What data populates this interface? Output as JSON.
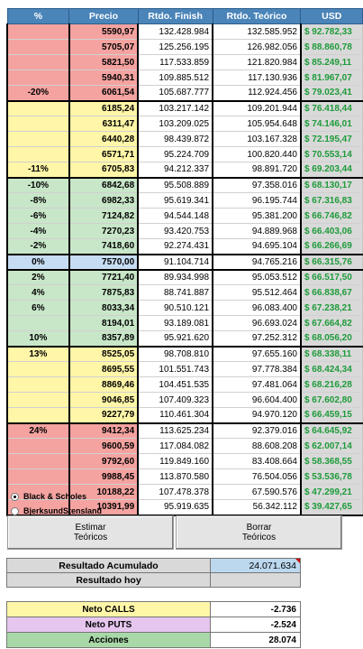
{
  "headers": {
    "pct": "%",
    "precio": "Precio",
    "finish": "Rtdo. Finish",
    "teorico": "Rtdo. Teórico",
    "usd": "USD"
  },
  "rows": [
    {
      "pct": "",
      "precio": "5590,97",
      "finish": "132.428.984",
      "teorico": "132.585.952",
      "usd": "$ 92.782,33",
      "band": "red"
    },
    {
      "pct": "",
      "precio": "5705,07",
      "finish": "125.256.195",
      "teorico": "126.982.056",
      "usd": "$ 88.860,78",
      "band": "red"
    },
    {
      "pct": "",
      "precio": "5821,50",
      "finish": "117.533.859",
      "teorico": "121.820.984",
      "usd": "$ 85.249,11",
      "band": "red"
    },
    {
      "pct": "",
      "precio": "5940,31",
      "finish": "109.885.512",
      "teorico": "117.130.936",
      "usd": "$ 81.967,07",
      "band": "red"
    },
    {
      "pct": "-20%",
      "precio": "6061,54",
      "finish": "105.687.777",
      "teorico": "112.924.456",
      "usd": "$ 79.023,41",
      "band": "red"
    },
    {
      "pct": "",
      "precio": "6185,24",
      "finish": "103.217.142",
      "teorico": "109.201.944",
      "usd": "$ 76.418,44",
      "band": "yel"
    },
    {
      "pct": "",
      "precio": "6311,47",
      "finish": "103.209.025",
      "teorico": "105.954.648",
      "usd": "$ 74.146,01",
      "band": "yel"
    },
    {
      "pct": "",
      "precio": "6440,28",
      "finish": "98.439.872",
      "teorico": "103.167.328",
      "usd": "$ 72.195,47",
      "band": "yel"
    },
    {
      "pct": "",
      "precio": "6571,71",
      "finish": "95.224.709",
      "teorico": "100.820.440",
      "usd": "$ 70.553,14",
      "band": "yel"
    },
    {
      "pct": "-11%",
      "precio": "6705,83",
      "finish": "94.212.337",
      "teorico": "98.891.720",
      "usd": "$ 69.203,44",
      "band": "yel"
    },
    {
      "pct": "-10%",
      "precio": "6842,68",
      "finish": "95.508.889",
      "teorico": "97.358.016",
      "usd": "$ 68.130,17",
      "band": "grn"
    },
    {
      "pct": "-8%",
      "precio": "6982,33",
      "finish": "95.619.341",
      "teorico": "96.195.744",
      "usd": "$ 67.316,83",
      "band": "grn"
    },
    {
      "pct": "-6%",
      "precio": "7124,82",
      "finish": "94.544.148",
      "teorico": "95.381.200",
      "usd": "$ 66.746,82",
      "band": "grn"
    },
    {
      "pct": "-4%",
      "precio": "7270,23",
      "finish": "93.420.753",
      "teorico": "94.889.968",
      "usd": "$ 66.403,06",
      "band": "grn"
    },
    {
      "pct": "-2%",
      "precio": "7418,60",
      "finish": "92.274.431",
      "teorico": "94.695.104",
      "usd": "$ 66.266,69",
      "band": "grn"
    },
    {
      "pct": "0%",
      "precio": "7570,00",
      "finish": "91.104.714",
      "teorico": "94.765.216",
      "usd": "$ 66.315,76",
      "band": "blu"
    },
    {
      "pct": "2%",
      "precio": "7721,40",
      "finish": "89.934.998",
      "teorico": "95.053.512",
      "usd": "$ 66.517,50",
      "band": "grn"
    },
    {
      "pct": "4%",
      "precio": "7875,83",
      "finish": "88.741.887",
      "teorico": "95.512.464",
      "usd": "$ 66.838,67",
      "band": "grn"
    },
    {
      "pct": "6%",
      "precio": "8033,34",
      "finish": "90.510.121",
      "teorico": "96.083.400",
      "usd": "$ 67.238,21",
      "band": "grn"
    },
    {
      "pct": "",
      "precio": "8194,01",
      "finish": "93.189.081",
      "teorico": "96.693.024",
      "usd": "$ 67.664,82",
      "band": "grn"
    },
    {
      "pct": "10%",
      "precio": "8357,89",
      "finish": "95.921.620",
      "teorico": "97.252.312",
      "usd": "$ 68.056,20",
      "band": "grn"
    },
    {
      "pct": "13%",
      "precio": "8525,05",
      "finish": "98.708.810",
      "teorico": "97.655.160",
      "usd": "$ 68.338,11",
      "band": "yel"
    },
    {
      "pct": "",
      "precio": "8695,55",
      "finish": "101.551.743",
      "teorico": "97.778.384",
      "usd": "$ 68.424,34",
      "band": "yel"
    },
    {
      "pct": "",
      "precio": "8869,46",
      "finish": "104.451.535",
      "teorico": "97.481.064",
      "usd": "$ 68.216,28",
      "band": "yel"
    },
    {
      "pct": "",
      "precio": "9046,85",
      "finish": "107.409.323",
      "teorico": "96.604.400",
      "usd": "$ 67.602,80",
      "band": "yel"
    },
    {
      "pct": "",
      "precio": "9227,79",
      "finish": "110.461.304",
      "teorico": "94.970.120",
      "usd": "$ 66.459,15",
      "band": "yel"
    },
    {
      "pct": "24%",
      "precio": "9412,34",
      "finish": "113.625.234",
      "teorico": "92.379.016",
      "usd": "$ 64.645,92",
      "band": "red"
    },
    {
      "pct": "",
      "precio": "9600,59",
      "finish": "117.084.082",
      "teorico": "88.608.208",
      "usd": "$ 62.007,14",
      "band": "red"
    },
    {
      "pct": "",
      "precio": "9792,60",
      "finish": "119.849.160",
      "teorico": "83.408.664",
      "usd": "$ 58.368,55",
      "band": "red"
    },
    {
      "pct": "",
      "precio": "9988,45",
      "finish": "113.870.580",
      "teorico": "76.504.056",
      "usd": "$ 53.536,78",
      "band": "red"
    },
    {
      "pct": "",
      "precio": "10188,22",
      "finish": "107.478.378",
      "teorico": "67.590.576",
      "usd": "$ 47.299,21",
      "band": "red"
    },
    {
      "pct": "",
      "precio": "10391,99",
      "finish": "95.919.635",
      "teorico": "56.342.112",
      "usd": "$ 39.427,65",
      "band": "red"
    }
  ],
  "model": {
    "option1": "Black & Scholes",
    "option2": "BjerksundStensland"
  },
  "buttons": {
    "estimar": "Estimar\nTeóricos",
    "borrar": "Borrar\nTeóricos"
  },
  "summary": {
    "acumulado_label": "Resultado Acumulado",
    "acumulado_value": "24.071.634",
    "hoy_label": "Resultado hoy",
    "hoy_value": ""
  },
  "net": {
    "calls_label": "Neto CALLS",
    "calls_value": "-2.736",
    "puts_label": "Neto PUTS",
    "puts_value": "-2.524",
    "acciones_label": "Acciones",
    "acciones_value": "28.074"
  },
  "colors": {
    "red": "#f4a3a0",
    "yellow": "#fff6a8",
    "green": "#c8e6c8",
    "blue": "#c6dcf2",
    "header": "#4a84b8",
    "usd_text": "#1e9b3a"
  }
}
